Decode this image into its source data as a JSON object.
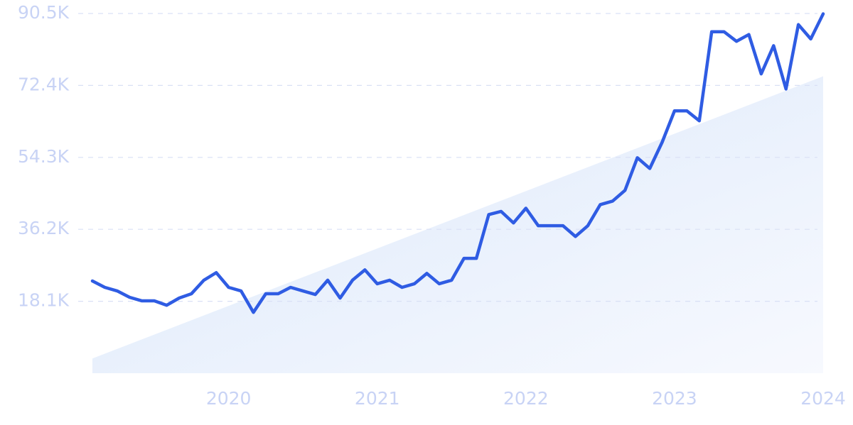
{
  "chart_data": {
    "type": "line",
    "x": [
      "2019-02",
      "2019-03",
      "2019-04",
      "2019-05",
      "2019-06",
      "2019-07",
      "2019-08",
      "2019-09",
      "2019-10",
      "2019-11",
      "2019-12",
      "2020-01",
      "2020-02",
      "2020-03",
      "2020-04",
      "2020-05",
      "2020-06",
      "2020-07",
      "2020-08",
      "2020-09",
      "2020-10",
      "2020-11",
      "2020-12",
      "2021-01",
      "2021-02",
      "2021-03",
      "2021-04",
      "2021-05",
      "2021-06",
      "2021-07",
      "2021-08",
      "2021-09",
      "2021-10",
      "2021-11",
      "2021-12",
      "2022-01",
      "2022-02",
      "2022-03",
      "2022-04",
      "2022-05",
      "2022-06",
      "2022-07",
      "2022-08",
      "2022-09",
      "2022-10",
      "2022-11",
      "2022-12",
      "2023-01",
      "2023-02",
      "2023-03",
      "2023-04",
      "2023-05",
      "2023-06",
      "2023-07",
      "2023-08",
      "2023-09",
      "2023-10",
      "2023-11",
      "2023-12",
      "2024-01"
    ],
    "series": [
      {
        "color": "#2f5ce3",
        "values": [
          23200,
          21600,
          20700,
          19100,
          18200,
          18200,
          17100,
          18900,
          20000,
          23400,
          25300,
          21600,
          20700,
          15300,
          20000,
          20000,
          21600,
          20700,
          19800,
          23400,
          18900,
          23400,
          26000,
          22500,
          23400,
          21600,
          22500,
          25100,
          22500,
          23400,
          28900,
          28900,
          39900,
          40700,
          37800,
          41500,
          37100,
          37100,
          37100,
          34400,
          37100,
          42400,
          43300,
          46000,
          54200,
          51500,
          58100,
          66000,
          66000,
          63500,
          85900,
          85900,
          83500,
          85200,
          75300,
          82400,
          71500,
          87700,
          84100,
          90400
        ]
      }
    ],
    "trend": {
      "x": [
        "2019-02",
        "2024-01"
      ],
      "values": [
        3700,
        74700
      ]
    },
    "ylim": [
      0,
      90500
    ],
    "yticks": [
      {
        "value": 18100,
        "label": "18.1K"
      },
      {
        "value": 36200,
        "label": "36.2K"
      },
      {
        "value": 54300,
        "label": "54.3K"
      },
      {
        "value": 72400,
        "label": "72.4K"
      },
      {
        "value": 90500,
        "label": "90.5K"
      }
    ],
    "xlim": [
      "2019-02",
      "2024-01"
    ],
    "xticks": [
      {
        "value": "2020-01",
        "label": "2020"
      },
      {
        "value": "2021-01",
        "label": "2021"
      },
      {
        "value": "2022-01",
        "label": "2022"
      },
      {
        "value": "2023-01",
        "label": "2023"
      },
      {
        "value": "2024-01",
        "label": "2024"
      }
    ],
    "grid": true
  }
}
